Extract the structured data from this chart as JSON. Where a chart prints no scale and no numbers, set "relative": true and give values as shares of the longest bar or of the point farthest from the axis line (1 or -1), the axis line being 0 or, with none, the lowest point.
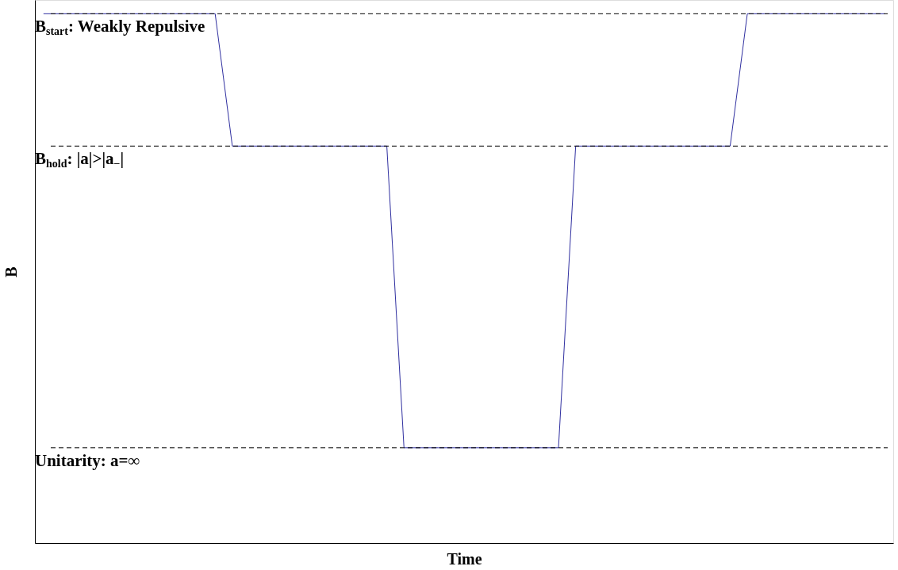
{
  "chart_data": {
    "type": "line",
    "xlabel": "Time",
    "ylabel": "B",
    "relative": true,
    "categories": [
      null,
      null,
      null,
      null,
      null,
      null,
      null,
      null,
      null,
      null,
      null,
      null,
      null,
      null,
      null,
      null,
      null,
      null,
      null,
      null,
      null,
      null,
      null,
      null,
      null,
      null,
      null,
      null,
      null,
      null,
      null,
      null,
      null,
      null,
      null,
      null,
      null,
      null,
      null,
      null,
      null,
      null,
      null,
      null,
      null,
      null,
      null,
      null,
      null,
      null
    ],
    "series": [
      {
        "color": "#3030a0",
        "values": [
          1,
          1,
          1,
          1,
          1,
          1,
          1,
          1,
          1,
          1,
          1,
          0.75,
          0.75,
          0.75,
          0.75,
          0.75,
          0.75,
          0.75,
          0.75,
          0.75,
          0.75,
          0.18,
          0.18,
          0.18,
          0.18,
          0.18,
          0.18,
          0.18,
          0.18,
          0.18,
          0.18,
          0.75,
          0.75,
          0.75,
          0.75,
          0.75,
          0.75,
          0.75,
          0.75,
          0.75,
          0.75,
          1,
          1,
          1,
          1,
          1,
          1,
          1,
          1,
          1
        ]
      }
    ],
    "ref_lines": [
      {
        "axis": "y",
        "value": 1,
        "label": "B$_{start}$: Weakly Repulsive",
        "color": "#000000",
        "line_style": "dashed"
      },
      {
        "axis": "y",
        "value": 0.75,
        "label": "B$_{hold}$: |a|>|a$_{−}$|",
        "color": "#000000",
        "line_style": "dashed"
      },
      {
        "axis": "y",
        "value": 0.18,
        "label": "Unitarity: a=∞",
        "color": "#000000",
        "line_style": "dashed"
      }
    ],
    "grid": false,
    "marker": "none",
    "line_style": "solid"
  }
}
